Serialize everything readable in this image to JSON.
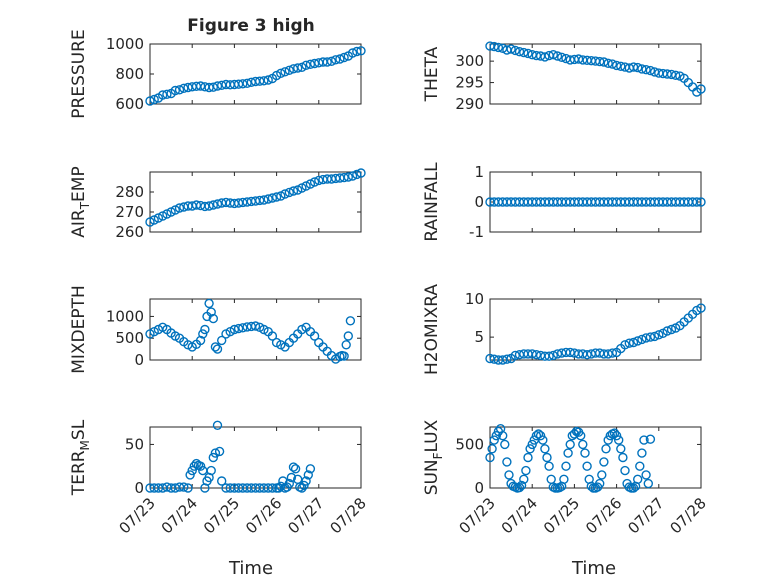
{
  "title": "Figure 3 high",
  "x_axis_label": "Time",
  "x_tick_labels": [
    "07/23",
    "07/24",
    "07/25",
    "07/26",
    "07/27",
    "07/28"
  ],
  "marker_color": "#0072bd",
  "chart_data": [
    {
      "type": "scatter",
      "ylabel": "PRESSURE",
      "ylim": [
        600,
        1000
      ],
      "yticks": [
        600,
        800,
        1000
      ],
      "xlim": [
        0,
        5
      ],
      "grid": true,
      "series": [
        {
          "x": [
            0.0,
            0.1,
            0.2,
            0.3,
            0.4,
            0.5,
            0.6,
            0.7,
            0.8,
            0.9,
            1.0,
            1.1,
            1.2,
            1.3,
            1.4,
            1.5,
            1.6,
            1.7,
            1.8,
            1.9,
            2.0,
            2.1,
            2.2,
            2.3,
            2.4,
            2.5,
            2.6,
            2.7,
            2.8,
            2.9,
            3.0,
            3.1,
            3.2,
            3.3,
            3.4,
            3.5,
            3.6,
            3.7,
            3.8,
            3.9,
            4.0,
            4.1,
            4.2,
            4.3,
            4.4,
            4.5,
            4.6,
            4.7,
            4.8,
            4.9,
            5.0
          ],
          "y": [
            620,
            630,
            640,
            660,
            665,
            670,
            690,
            695,
            705,
            710,
            715,
            718,
            720,
            715,
            710,
            712,
            720,
            725,
            730,
            728,
            730,
            732,
            735,
            738,
            745,
            750,
            752,
            755,
            760,
            770,
            790,
            805,
            815,
            825,
            835,
            840,
            845,
            858,
            865,
            870,
            875,
            880,
            880,
            885,
            895,
            900,
            910,
            920,
            940,
            950,
            955
          ]
        }
      ]
    },
    {
      "type": "scatter",
      "ylabel": "THETA",
      "ylim": [
        290,
        304
      ],
      "yticks": [
        290,
        295,
        300
      ],
      "xlim": [
        0,
        5
      ],
      "grid": true,
      "series": [
        {
          "x": [
            0.0,
            0.1,
            0.2,
            0.3,
            0.4,
            0.5,
            0.6,
            0.7,
            0.8,
            0.9,
            1.0,
            1.1,
            1.2,
            1.3,
            1.4,
            1.5,
            1.6,
            1.7,
            1.8,
            1.9,
            2.0,
            2.1,
            2.2,
            2.3,
            2.4,
            2.5,
            2.6,
            2.7,
            2.8,
            2.9,
            3.0,
            3.1,
            3.2,
            3.3,
            3.4,
            3.5,
            3.6,
            3.7,
            3.8,
            3.9,
            4.0,
            4.1,
            4.2,
            4.3,
            4.4,
            4.5,
            4.6,
            4.7,
            4.8,
            4.9,
            5.0
          ],
          "y": [
            303.5,
            303.4,
            303.2,
            303.0,
            302.6,
            302.8,
            302.5,
            302.2,
            302.0,
            301.8,
            301.5,
            301.3,
            301.2,
            301.0,
            301.3,
            301.5,
            301.2,
            300.9,
            300.6,
            300.3,
            300.4,
            300.5,
            300.3,
            300.2,
            300.1,
            300.0,
            299.9,
            299.8,
            299.5,
            299.3,
            299.0,
            298.8,
            298.6,
            298.4,
            298.6,
            298.5,
            298.2,
            298.0,
            297.8,
            297.5,
            297.2,
            297.1,
            297.0,
            296.9,
            296.7,
            296.5,
            296.0,
            295.0,
            294.0,
            292.8,
            293.5
          ]
        }
      ]
    },
    {
      "type": "scatter",
      "ylabel": "AIR_TEMP",
      "ylim": [
        260,
        290
      ],
      "yticks": [
        260,
        270,
        280
      ],
      "xlim": [
        0,
        5
      ],
      "grid": true,
      "series": [
        {
          "x": [
            0.0,
            0.1,
            0.2,
            0.3,
            0.4,
            0.5,
            0.6,
            0.7,
            0.8,
            0.9,
            1.0,
            1.1,
            1.2,
            1.3,
            1.4,
            1.5,
            1.6,
            1.7,
            1.8,
            1.9,
            2.0,
            2.1,
            2.2,
            2.3,
            2.4,
            2.5,
            2.6,
            2.7,
            2.8,
            2.9,
            3.0,
            3.1,
            3.2,
            3.3,
            3.4,
            3.5,
            3.6,
            3.7,
            3.8,
            3.9,
            4.0,
            4.1,
            4.2,
            4.3,
            4.4,
            4.5,
            4.6,
            4.7,
            4.8,
            4.9,
            5.0
          ],
          "y": [
            265,
            266,
            267,
            268,
            269,
            270,
            271,
            272,
            272.5,
            273,
            273,
            273.5,
            273.2,
            272.8,
            273,
            273.5,
            274,
            274.5,
            274.8,
            274.5,
            274.3,
            274.5,
            274.8,
            275,
            275.3,
            275.5,
            275.8,
            276,
            276.5,
            277,
            277.5,
            278,
            279,
            279.8,
            280.5,
            281,
            282,
            283,
            284,
            285,
            285.8,
            286.2,
            286.5,
            286.5,
            286.8,
            287,
            287.2,
            287.5,
            288,
            288.8,
            289.5
          ]
        }
      ]
    },
    {
      "type": "scatter",
      "ylabel": "RAINFALL",
      "ylim": [
        -1,
        1
      ],
      "yticks": [
        -1,
        0,
        1
      ],
      "xlim": [
        0,
        5
      ],
      "grid": true,
      "series": [
        {
          "x": [
            0.0,
            0.1,
            0.2,
            0.3,
            0.4,
            0.5,
            0.6,
            0.7,
            0.8,
            0.9,
            1.0,
            1.1,
            1.2,
            1.3,
            1.4,
            1.5,
            1.6,
            1.7,
            1.8,
            1.9,
            2.0,
            2.1,
            2.2,
            2.3,
            2.4,
            2.5,
            2.6,
            2.7,
            2.8,
            2.9,
            3.0,
            3.1,
            3.2,
            3.3,
            3.4,
            3.5,
            3.6,
            3.7,
            3.8,
            3.9,
            4.0,
            4.1,
            4.2,
            4.3,
            4.4,
            4.5,
            4.6,
            4.7,
            4.8,
            4.9,
            5.0
          ],
          "y": [
            0,
            0,
            0,
            0,
            0,
            0,
            0,
            0,
            0,
            0,
            0,
            0,
            0,
            0,
            0,
            0,
            0,
            0,
            0,
            0,
            0,
            0,
            0,
            0,
            0,
            0,
            0,
            0,
            0,
            0,
            0,
            0,
            0,
            0,
            0,
            0,
            0,
            0,
            0,
            0,
            0,
            0,
            0,
            0,
            0,
            0,
            0,
            0,
            0,
            0,
            0
          ]
        }
      ]
    },
    {
      "type": "scatter",
      "ylabel": "MIXDEPTH",
      "ylim": [
        0,
        1400
      ],
      "yticks": [
        0,
        500,
        1000
      ],
      "xlim": [
        0,
        5
      ],
      "grid": true,
      "series": [
        {
          "x": [
            0.0,
            0.1,
            0.2,
            0.3,
            0.4,
            0.5,
            0.6,
            0.7,
            0.8,
            0.9,
            1.0,
            1.1,
            1.2,
            1.25,
            1.3,
            1.35,
            1.4,
            1.45,
            1.5,
            1.55,
            1.6,
            1.7,
            1.8,
            1.9,
            2.0,
            2.1,
            2.2,
            2.3,
            2.4,
            2.5,
            2.6,
            2.7,
            2.8,
            2.9,
            3.0,
            3.1,
            3.2,
            3.3,
            3.4,
            3.5,
            3.6,
            3.7,
            3.8,
            3.9,
            4.0,
            4.1,
            4.2,
            4.3,
            4.4,
            4.5,
            4.55,
            4.6,
            4.65,
            4.7,
            4.75
          ],
          "y": [
            600,
            650,
            700,
            750,
            700,
            620,
            550,
            500,
            420,
            350,
            300,
            360,
            450,
            600,
            700,
            1000,
            1300,
            1100,
            950,
            300,
            250,
            450,
            600,
            650,
            700,
            720,
            740,
            760,
            770,
            780,
            750,
            700,
            650,
            550,
            400,
            350,
            300,
            400,
            500,
            600,
            700,
            750,
            650,
            550,
            400,
            300,
            200,
            100,
            20,
            80,
            100,
            90,
            350,
            550,
            900
          ]
        }
      ]
    },
    {
      "type": "scatter",
      "ylabel": "H2OMIXRA",
      "ylim": [
        2,
        10
      ],
      "yticks": [
        5,
        10
      ],
      "xlim": [
        0,
        5
      ],
      "grid": true,
      "series": [
        {
          "x": [
            0.0,
            0.1,
            0.2,
            0.3,
            0.4,
            0.5,
            0.6,
            0.7,
            0.8,
            0.9,
            1.0,
            1.1,
            1.2,
            1.3,
            1.4,
            1.5,
            1.6,
            1.7,
            1.8,
            1.9,
            2.0,
            2.1,
            2.2,
            2.3,
            2.4,
            2.5,
            2.6,
            2.7,
            2.8,
            2.9,
            3.0,
            3.1,
            3.2,
            3.3,
            3.4,
            3.5,
            3.6,
            3.7,
            3.8,
            3.9,
            4.0,
            4.1,
            4.2,
            4.3,
            4.4,
            4.5,
            4.6,
            4.7,
            4.8,
            4.9,
            5.0
          ],
          "y": [
            2.2,
            2.1,
            2.0,
            2.0,
            2.1,
            2.2,
            2.6,
            2.7,
            2.8,
            2.8,
            2.8,
            2.7,
            2.6,
            2.5,
            2.5,
            2.6,
            2.8,
            2.9,
            3.0,
            3.0,
            2.9,
            2.8,
            2.8,
            2.7,
            2.8,
            2.9,
            2.9,
            2.8,
            2.8,
            2.9,
            3.0,
            3.5,
            4.0,
            4.2,
            4.3,
            4.5,
            4.7,
            4.9,
            5.0,
            5.1,
            5.3,
            5.5,
            5.8,
            6.0,
            6.2,
            6.5,
            7.0,
            7.5,
            8.0,
            8.5,
            8.8
          ]
        }
      ]
    },
    {
      "type": "scatter",
      "ylabel": "TERR_MSL",
      "ylim": [
        0,
        70
      ],
      "yticks": [
        0,
        50
      ],
      "xlim": [
        0,
        5
      ],
      "grid": true,
      "series": [
        {
          "x": [
            0.0,
            0.1,
            0.2,
            0.3,
            0.4,
            0.5,
            0.6,
            0.7,
            0.8,
            0.9,
            0.95,
            1.0,
            1.05,
            1.1,
            1.15,
            1.2,
            1.25,
            1.3,
            1.35,
            1.4,
            1.45,
            1.5,
            1.55,
            1.6,
            1.65,
            1.7,
            1.8,
            1.9,
            2.0,
            2.1,
            2.2,
            2.3,
            2.4,
            2.5,
            2.6,
            2.7,
            2.8,
            2.9,
            3.0,
            3.05,
            3.1,
            3.15,
            3.2,
            3.25,
            3.3,
            3.35,
            3.4,
            3.45,
            3.5,
            3.55,
            3.6,
            3.65,
            3.7,
            3.75,
            3.8
          ],
          "y": [
            0,
            0,
            0,
            0,
            1,
            0,
            0,
            1,
            1,
            0,
            15,
            20,
            25,
            28,
            26,
            25,
            20,
            0,
            8,
            12,
            20,
            35,
            40,
            72,
            42,
            8,
            0,
            0,
            0,
            0,
            0,
            0,
            0,
            0,
            0,
            0,
            0,
            0,
            0,
            0,
            2,
            8,
            0,
            1,
            5,
            12,
            24,
            22,
            10,
            1,
            0,
            3,
            8,
            15,
            22
          ]
        }
      ]
    },
    {
      "type": "scatter",
      "ylabel": "SUN_FLUX",
      "ylim": [
        0,
        700
      ],
      "yticks": [
        0,
        500
      ],
      "xlim": [
        0,
        5
      ],
      "grid": true,
      "series": [
        {
          "x": [
            0.0,
            0.05,
            0.1,
            0.15,
            0.2,
            0.25,
            0.3,
            0.35,
            0.4,
            0.45,
            0.5,
            0.55,
            0.6,
            0.65,
            0.7,
            0.75,
            0.8,
            0.85,
            0.9,
            0.95,
            1.0,
            1.05,
            1.1,
            1.15,
            1.2,
            1.25,
            1.3,
            1.35,
            1.4,
            1.45,
            1.5,
            1.55,
            1.6,
            1.65,
            1.7,
            1.75,
            1.8,
            1.85,
            1.9,
            1.95,
            2.0,
            2.05,
            2.1,
            2.15,
            2.2,
            2.25,
            2.3,
            2.35,
            2.4,
            2.45,
            2.5,
            2.55,
            2.6,
            2.65,
            2.7,
            2.75,
            2.8,
            2.85,
            2.9,
            2.95,
            3.0,
            3.05,
            3.1,
            3.15,
            3.2,
            3.25,
            3.3,
            3.35,
            3.4,
            3.45,
            3.5,
            3.55,
            3.6,
            3.65,
            3.7,
            3.75,
            3.8
          ],
          "y": [
            350,
            450,
            550,
            600,
            650,
            680,
            600,
            500,
            300,
            150,
            50,
            20,
            10,
            0,
            5,
            30,
            100,
            200,
            350,
            450,
            500,
            550,
            600,
            620,
            600,
            550,
            450,
            350,
            250,
            100,
            10,
            0,
            0,
            5,
            20,
            100,
            250,
            400,
            500,
            600,
            620,
            650,
            640,
            600,
            500,
            400,
            250,
            100,
            20,
            0,
            0,
            10,
            50,
            150,
            300,
            450,
            550,
            600,
            620,
            630,
            600,
            550,
            450,
            350,
            200,
            50,
            10,
            0,
            0,
            20,
            100,
            250,
            400,
            550,
            150,
            50,
            560
          ]
        }
      ]
    }
  ]
}
